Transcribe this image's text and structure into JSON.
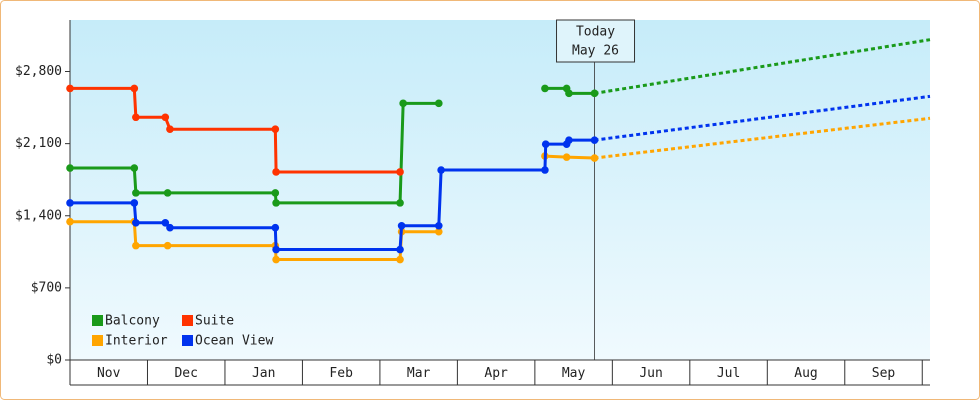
{
  "chart_data": {
    "type": "line",
    "xlim": [
      0,
      11.1
    ],
    "ylim": [
      0,
      3300
    ],
    "xticks": [
      {
        "value": 0.5,
        "label": "Nov"
      },
      {
        "value": 1.5,
        "label": "Dec"
      },
      {
        "value": 2.5,
        "label": "Jan"
      },
      {
        "value": 3.5,
        "label": "Feb"
      },
      {
        "value": 4.5,
        "label": "Mar"
      },
      {
        "value": 5.5,
        "label": "Apr"
      },
      {
        "value": 6.5,
        "label": "May"
      },
      {
        "value": 7.5,
        "label": "Jun"
      },
      {
        "value": 8.5,
        "label": "Jul"
      },
      {
        "value": 9.5,
        "label": "Aug"
      },
      {
        "value": 10.5,
        "label": "Sep"
      }
    ],
    "yticks": [
      {
        "value": 0,
        "label": "$0"
      },
      {
        "value": 700,
        "label": "$700"
      },
      {
        "value": 1400,
        "label": "$1,400"
      },
      {
        "value": 2100,
        "label": "$2,100"
      },
      {
        "value": 2800,
        "label": "$2,800"
      }
    ],
    "legend": "lower left",
    "today": {
      "x": 6.77,
      "label": [
        "Today",
        "May 26"
      ]
    },
    "series": [
      {
        "name": "Balcony",
        "color": "#1a9a1a",
        "x": [
          0,
          0.83,
          0.85,
          1.26,
          2.65,
          2.66,
          4.26,
          4.3,
          4.76,
          null,
          6.13,
          6.41,
          6.44,
          6.77
        ],
        "values": [
          1863,
          1863,
          1622,
          1622,
          1622,
          1525,
          1525,
          2491,
          2491,
          null,
          2636,
          2636,
          2588,
          2588
        ],
        "forecast": {
          "x": [
            6.77,
            11.1
          ],
          "values": [
            2588,
            3109
          ]
        }
      },
      {
        "name": "Suite",
        "color": "#ff3300",
        "x": [
          0,
          0.83,
          0.85,
          1.23,
          1.29,
          2.65,
          2.66,
          4.26
        ],
        "values": [
          2636,
          2636,
          2356,
          2356,
          2240,
          2240,
          1825,
          1825
        ]
      },
      {
        "name": "Interior",
        "color": "#ffa500",
        "x": [
          0,
          0.83,
          0.85,
          1.26,
          2.65,
          2.66,
          4.26,
          4.28,
          4.76,
          null,
          6.13,
          6.41,
          6.77
        ],
        "values": [
          1342,
          1342,
          1110,
          1110,
          1110,
          975,
          975,
          1245,
          1245,
          null,
          1979,
          1969,
          1960
        ],
        "forecast": {
          "x": [
            6.77,
            11.1
          ],
          "values": [
            1960,
            2346
          ]
        }
      },
      {
        "name": "Ocean View",
        "color": "#0033ee",
        "x": [
          0,
          0.83,
          0.85,
          1.23,
          1.29,
          2.65,
          2.66,
          4.26,
          4.28,
          4.76,
          4.79,
          6.13,
          6.14,
          6.41,
          6.44,
          6.77
        ],
        "values": [
          1525,
          1525,
          1332,
          1332,
          1284,
          1284,
          1072,
          1072,
          1303,
          1303,
          1844,
          1844,
          2095,
          2095,
          2134,
          2134
        ],
        "forecast": {
          "x": [
            6.77,
            11.1
          ],
          "values": [
            2134,
            2559
          ]
        }
      }
    ]
  }
}
